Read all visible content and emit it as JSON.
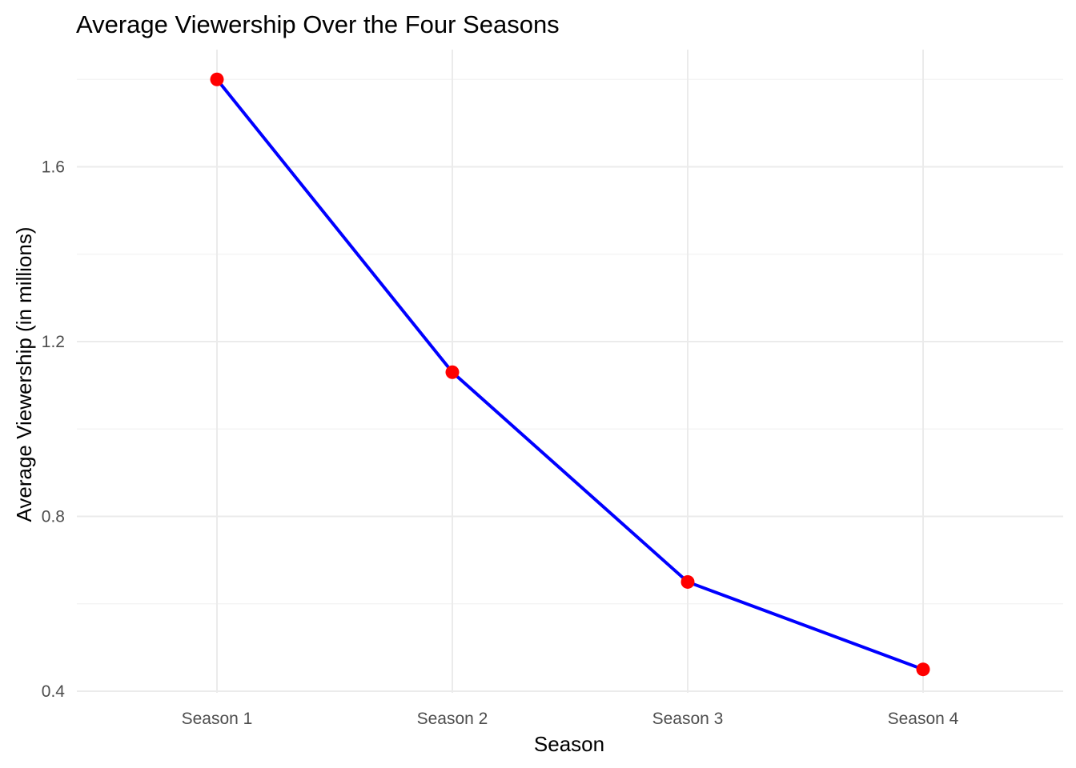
{
  "chart_data": {
    "type": "line",
    "title": "Average Viewership Over the Four Seasons",
    "xlabel": "Season",
    "ylabel": "Average Viewership (in millions)",
    "categories": [
      "Season 1",
      "Season 2",
      "Season 3",
      "Season 4"
    ],
    "series": [
      {
        "values": [
          1.8,
          1.13,
          0.65,
          0.45
        ],
        "line_color": "#0000ff",
        "point_color": "#ff0000"
      }
    ],
    "y_ticks": [
      0.4,
      0.8,
      1.2,
      1.6
    ],
    "y_tick_labels": [
      "0.4",
      "0.8",
      "1.2",
      "1.6"
    ],
    "ylim": [
      0.4,
      1.8
    ],
    "grid": true,
    "legend": "none"
  }
}
